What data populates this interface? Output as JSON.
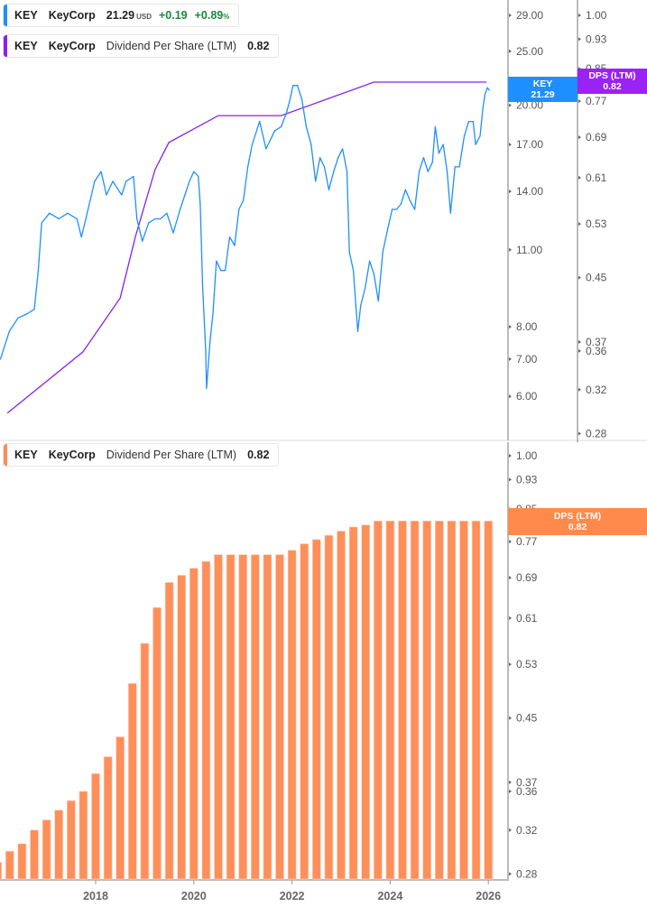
{
  "legend_price": {
    "symbol": "KEY",
    "name": "KeyCorp",
    "price": "21.29",
    "currency": "USD",
    "change": "+0.19",
    "change_pct": "+0.89",
    "pct_sign": "%",
    "color": "#1e8fff"
  },
  "legend_dps_top": {
    "symbol": "KEY",
    "name": "KeyCorp",
    "metric": "Dividend Per Share (LTM)",
    "value": "0.82",
    "color": "#8b1ff0"
  },
  "legend_dps_bottom": {
    "symbol": "KEY",
    "name": "KeyCorp",
    "metric": "Dividend Per Share (LTM)",
    "value": "0.82",
    "color": "#ff8c55"
  },
  "flags": {
    "price": {
      "label": "KEY",
      "value": "21.29",
      "color": "#1e8fff"
    },
    "dps_top": {
      "label": "DPS (LTM)",
      "value": "0.82",
      "color": "#9b22f5"
    },
    "dps_bottom": {
      "label": "DPS (LTM)",
      "value": "0.82",
      "color": "#ff8a4c"
    }
  },
  "chart_data": [
    {
      "type": "line",
      "scale": "log",
      "series": [
        {
          "name": "KEY",
          "color": "#1e8fff",
          "points": [
            [
              2016.06,
              7.0
            ],
            [
              2016.24,
              7.85
            ],
            [
              2016.42,
              8.3
            ],
            [
              2016.61,
              8.45
            ],
            [
              2016.75,
              8.6
            ],
            [
              2016.83,
              10.1
            ],
            [
              2016.9,
              12.3
            ],
            [
              2017.06,
              12.8
            ],
            [
              2017.25,
              12.5
            ],
            [
              2017.43,
              12.8
            ],
            [
              2017.62,
              12.5
            ],
            [
              2017.71,
              11.6
            ],
            [
              2017.8,
              12.5
            ],
            [
              2017.98,
              14.6
            ],
            [
              2018.11,
              15.2
            ],
            [
              2018.22,
              13.8
            ],
            [
              2018.35,
              14.6
            ],
            [
              2018.53,
              13.8
            ],
            [
              2018.62,
              14.6
            ],
            [
              2018.77,
              14.9
            ],
            [
              2018.84,
              12.5
            ],
            [
              2018.95,
              11.4
            ],
            [
              2019.08,
              12.3
            ],
            [
              2019.21,
              12.5
            ],
            [
              2019.32,
              12.5
            ],
            [
              2019.45,
              12.8
            ],
            [
              2019.58,
              11.8
            ],
            [
              2019.72,
              13.0
            ],
            [
              2019.91,
              14.6
            ],
            [
              2020.0,
              15.2
            ],
            [
              2020.09,
              14.9
            ],
            [
              2020.13,
              13.3
            ],
            [
              2020.18,
              9.4
            ],
            [
              2020.24,
              7.3
            ],
            [
              2020.26,
              6.2
            ],
            [
              2020.33,
              7.55
            ],
            [
              2020.39,
              8.45
            ],
            [
              2020.46,
              10.5
            ],
            [
              2020.55,
              10.1
            ],
            [
              2020.64,
              10.1
            ],
            [
              2020.73,
              11.6
            ],
            [
              2020.83,
              11.2
            ],
            [
              2020.92,
              13.0
            ],
            [
              2021.01,
              13.5
            ],
            [
              2021.1,
              15.5
            ],
            [
              2021.19,
              17.0
            ],
            [
              2021.34,
              18.7
            ],
            [
              2021.47,
              16.7
            ],
            [
              2021.65,
              18.0
            ],
            [
              2021.78,
              18.3
            ],
            [
              2021.89,
              19.4
            ],
            [
              2021.96,
              20.5
            ],
            [
              2022.02,
              21.7
            ],
            [
              2022.11,
              21.7
            ],
            [
              2022.2,
              20.5
            ],
            [
              2022.29,
              18.3
            ],
            [
              2022.39,
              17.0
            ],
            [
              2022.48,
              14.6
            ],
            [
              2022.57,
              16.1
            ],
            [
              2022.66,
              15.5
            ],
            [
              2022.75,
              14.1
            ],
            [
              2022.85,
              15.2
            ],
            [
              2022.94,
              16.1
            ],
            [
              2023.03,
              16.7
            ],
            [
              2023.12,
              15.2
            ],
            [
              2023.17,
              10.9
            ],
            [
              2023.25,
              10.1
            ],
            [
              2023.3,
              8.75
            ],
            [
              2023.34,
              7.85
            ],
            [
              2023.4,
              8.75
            ],
            [
              2023.49,
              9.4
            ],
            [
              2023.58,
              10.5
            ],
            [
              2023.67,
              9.95
            ],
            [
              2023.76,
              8.9
            ],
            [
              2023.85,
              10.9
            ],
            [
              2023.95,
              12.0
            ],
            [
              2024.04,
              13.0
            ],
            [
              2024.13,
              13.0
            ],
            [
              2024.22,
              13.3
            ],
            [
              2024.31,
              14.1
            ],
            [
              2024.4,
              13.5
            ],
            [
              2024.5,
              13.0
            ],
            [
              2024.59,
              15.2
            ],
            [
              2024.68,
              16.1
            ],
            [
              2024.77,
              15.2
            ],
            [
              2024.86,
              15.8
            ],
            [
              2024.92,
              18.3
            ],
            [
              2024.99,
              16.4
            ],
            [
              2025.08,
              17.0
            ],
            [
              2025.16,
              15.2
            ],
            [
              2025.23,
              12.8
            ],
            [
              2025.32,
              15.5
            ],
            [
              2025.41,
              15.5
            ],
            [
              2025.51,
              17.6
            ],
            [
              2025.6,
              18.7
            ],
            [
              2025.69,
              18.7
            ],
            [
              2025.74,
              17.0
            ],
            [
              2025.83,
              17.6
            ],
            [
              2025.89,
              19.8
            ],
            [
              2025.93,
              20.9
            ],
            [
              2025.98,
              21.5
            ],
            [
              2026.02,
              21.29
            ]
          ]
        },
        {
          "name": "DPS (LTM)",
          "color": "#8b1ff0",
          "axis": "dps",
          "points": [
            [
              2016.2,
              0.298
            ],
            [
              2017.74,
              0.359
            ],
            [
              2018.5,
              0.423
            ],
            [
              2018.81,
              0.51
            ],
            [
              2019.21,
              0.625
            ],
            [
              2019.49,
              0.679
            ],
            [
              2020.5,
              0.737
            ],
            [
              2021.78,
              0.737
            ],
            [
              2023.67,
              0.816
            ],
            [
              2025.96,
              0.816
            ]
          ]
        }
      ],
      "price_ticks": [
        "29.00",
        "25.00",
        "20.00",
        "17.00",
        "14.00",
        "11.00",
        "8.00",
        "7.00",
        "6.00"
      ],
      "dps_ticks": [
        "1.00",
        "0.93",
        "0.85",
        "0.77",
        "0.69",
        "0.61",
        "0.53",
        "0.45",
        "0.37",
        "0.36",
        "0.32",
        "0.28"
      ]
    },
    {
      "type": "bar",
      "scale": "log",
      "series": [
        {
          "name": "DPS (LTM)",
          "color": "#ff8f5a",
          "x_start": 2016.0,
          "x_step": 0.25,
          "values": [
            0.29,
            0.3,
            0.307,
            0.32,
            0.33,
            0.34,
            0.35,
            0.36,
            0.38,
            0.4,
            0.425,
            0.5,
            0.565,
            0.63,
            0.68,
            0.695,
            0.71,
            0.725,
            0.74,
            0.74,
            0.74,
            0.74,
            0.74,
            0.74,
            0.75,
            0.765,
            0.775,
            0.785,
            0.795,
            0.805,
            0.81,
            0.82,
            0.82,
            0.82,
            0.82,
            0.82,
            0.82,
            0.82,
            0.82,
            0.82,
            0.82
          ]
        }
      ],
      "dps_ticks": [
        "1.00",
        "0.93",
        "0.85",
        "0.77",
        "0.69",
        "0.61",
        "0.53",
        "0.45",
        "0.37",
        "0.36",
        "0.32",
        "0.28"
      ],
      "x_ticks": [
        "2018",
        "2020",
        "2022",
        "2024",
        "2026"
      ]
    }
  ]
}
